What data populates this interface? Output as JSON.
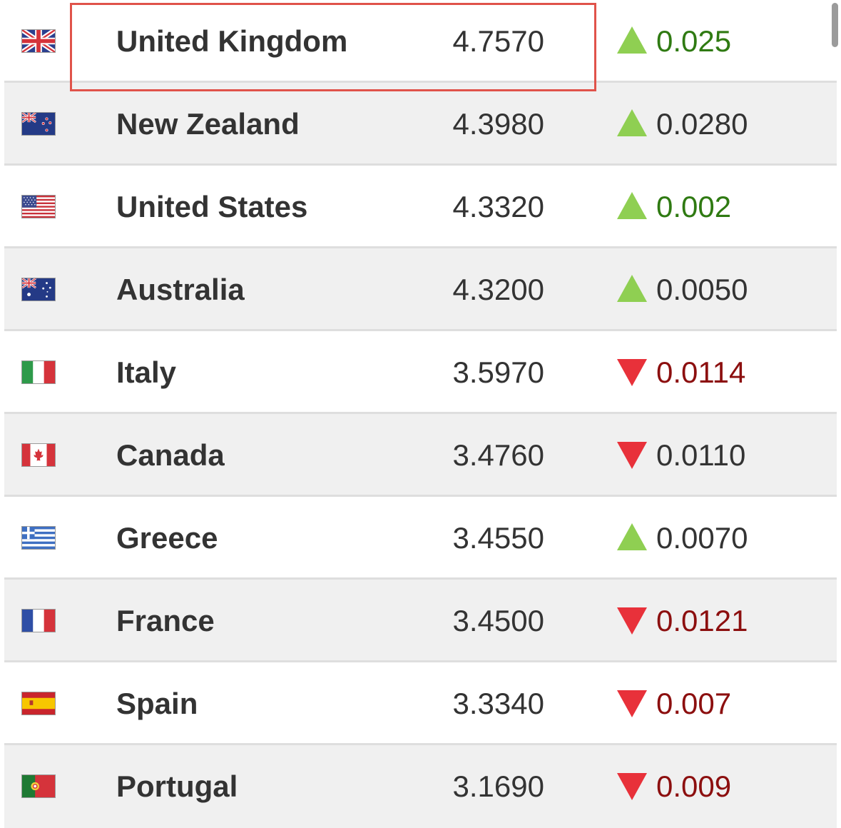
{
  "colors": {
    "up_arrow": "#8fcf52",
    "down_arrow": "#e8313a",
    "green_text": "#2f7a12",
    "red_text": "#8c0f0f",
    "neutral_text": "#333333",
    "highlight_border": "#e0534a"
  },
  "rows": [
    {
      "country": "United Kingdom",
      "flag": "uk-flag-icon",
      "value": "4.7570",
      "direction": "up",
      "change": "0.025",
      "change_color": "green"
    },
    {
      "country": "New Zealand",
      "flag": "new-zealand-flag-icon",
      "value": "4.3980",
      "direction": "up",
      "change": "0.0280",
      "change_color": "neutral"
    },
    {
      "country": "United States",
      "flag": "us-flag-icon",
      "value": "4.3320",
      "direction": "up",
      "change": "0.002",
      "change_color": "green"
    },
    {
      "country": "Australia",
      "flag": "australia-flag-icon",
      "value": "4.3200",
      "direction": "up",
      "change": "0.0050",
      "change_color": "neutral"
    },
    {
      "country": "Italy",
      "flag": "italy-flag-icon",
      "value": "3.5970",
      "direction": "down",
      "change": "0.0114",
      "change_color": "red"
    },
    {
      "country": "Canada",
      "flag": "canada-flag-icon",
      "value": "3.4760",
      "direction": "down",
      "change": "0.0110",
      "change_color": "neutral"
    },
    {
      "country": "Greece",
      "flag": "greece-flag-icon",
      "value": "3.4550",
      "direction": "up",
      "change": "0.0070",
      "change_color": "neutral"
    },
    {
      "country": "France",
      "flag": "france-flag-icon",
      "value": "3.4500",
      "direction": "down",
      "change": "0.0121",
      "change_color": "red"
    },
    {
      "country": "Spain",
      "flag": "spain-flag-icon",
      "value": "3.3340",
      "direction": "down",
      "change": "0.007",
      "change_color": "red"
    },
    {
      "country": "Portugal",
      "flag": "portugal-flag-icon",
      "value": "3.1690",
      "direction": "down",
      "change": "0.009",
      "change_color": "red"
    }
  ]
}
